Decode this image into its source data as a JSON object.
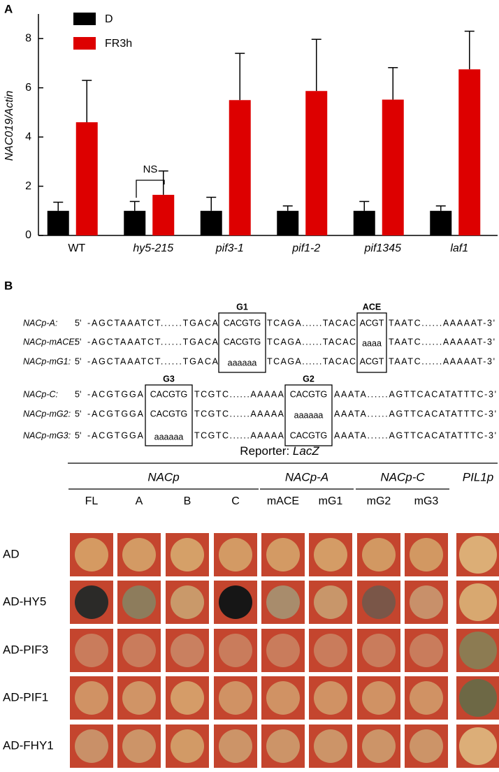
{
  "panel_labels": [
    "A",
    "B"
  ],
  "chart_data": {
    "type": "bar",
    "y_label": "NAC019/Actin",
    "categories": [
      "WT",
      "hy5-215",
      "pif3-1",
      "pif1-2",
      "pif1345",
      "laf1"
    ],
    "category_style": [
      "normal",
      "italic",
      "italic",
      "italic",
      "italic",
      "italic"
    ],
    "series": [
      {
        "name": "D",
        "color": "#000000",
        "values": [
          1.0,
          1.0,
          1.0,
          1.0,
          1.0,
          1.0
        ],
        "errors": [
          0.35,
          0.38,
          0.55,
          0.2,
          0.38,
          0.2
        ]
      },
      {
        "name": "FR3h",
        "color": "#dd0000",
        "values": [
          4.6,
          1.65,
          5.5,
          5.87,
          5.52,
          6.75
        ],
        "errors": [
          1.7,
          0.97,
          1.9,
          2.1,
          1.3,
          1.55
        ]
      }
    ],
    "annotation": "NS",
    "ylim": [
      0,
      9
    ],
    "yticks": [
      0,
      2,
      4,
      6,
      8
    ]
  },
  "sequences": {
    "groups": [
      {
        "boxes": [
          "G1",
          "ACE"
        ],
        "rows": [
          {
            "label": "NACp-A:",
            "prime": "5'",
            "parts": [
              {
                "text": "-AGCTAAATCT......TGACA",
                "color": "#000000"
              },
              {
                "text": "CACGTG",
                "color": "#dd1111"
              },
              {
                "text": "TCAGA......TACAC",
                "color": "#000000"
              },
              {
                "text": "ACGT",
                "color": "#dd1111"
              },
              {
                "text": "TAATC......AAAAAT-3'",
                "color": "#000000"
              }
            ]
          },
          {
            "label": "NACp-mACE:",
            "prime": "5'",
            "parts": [
              {
                "text": "-AGCTAAATCT......TGACA",
                "color": "#000000"
              },
              {
                "text": "CACGTG",
                "color": "#dd1111"
              },
              {
                "text": "TCAGA......TACAC",
                "color": "#000000"
              },
              {
                "text": "aaaa",
                "color": "#000000"
              },
              {
                "text": "TAATC......AAAAAT-3'",
                "color": "#000000"
              }
            ]
          },
          {
            "label": "NACp-mG1:",
            "prime": "5'",
            "parts": [
              {
                "text": "-AGCTAAATCT......TGACA",
                "color": "#000000"
              },
              {
                "text": "aaaaaa",
                "color": "#000000"
              },
              {
                "text": "TCAGA......TACAC",
                "color": "#000000"
              },
              {
                "text": "ACGT",
                "color": "#dd1111"
              },
              {
                "text": "TAATC......AAAAAT-3'",
                "color": "#000000"
              }
            ]
          }
        ]
      },
      {
        "boxes": [
          "G3",
          "G2"
        ],
        "rows": [
          {
            "label": "NACp-C:",
            "prime": "5'",
            "parts": [
              {
                "text": "-ACGTGGA",
                "color": "#000000"
              },
              {
                "text": "CACGTG",
                "color": "#dd1111"
              },
              {
                "text": "TCGTC......AAAAA",
                "color": "#000000"
              },
              {
                "text": "CACGTG",
                "color": "#dd1111"
              },
              {
                "text": "AAATA......AGTTCACATATTTC-3'",
                "color": "#000000"
              }
            ]
          },
          {
            "label": "NACp-mG2:",
            "prime": "5'",
            "parts": [
              {
                "text": "-ACGTGGA",
                "color": "#000000"
              },
              {
                "text": "CACGTG",
                "color": "#dd1111"
              },
              {
                "text": "TCGTC......AAAAA",
                "color": "#000000"
              },
              {
                "text": "aaaaaa",
                "color": "#000000"
              },
              {
                "text": "AAATA......AGTTCACATATTTC-3'",
                "color": "#000000"
              }
            ]
          },
          {
            "label": "NACp-mG3:",
            "prime": "5'",
            "parts": [
              {
                "text": "-ACGTGGA",
                "color": "#000000"
              },
              {
                "text": "aaaaaa",
                "color": "#000000"
              },
              {
                "text": "TCGTC......AAAAA",
                "color": "#000000"
              },
              {
                "text": "CACGTG",
                "color": "#dd1111"
              },
              {
                "text": "AAATA......AGTTCACATATTTC-3'",
                "color": "#000000"
              }
            ]
          }
        ]
      }
    ]
  },
  "assay": {
    "title": "Reporter:",
    "title_italic": "LacZ",
    "groups": [
      {
        "label": "NACp",
        "columns": [
          "FL",
          "A",
          "B",
          "C"
        ]
      },
      {
        "label": "NACp-A",
        "columns": [
          "mACE",
          "mG1"
        ]
      },
      {
        "label": "NACp-C",
        "columns": [
          "mG2",
          "mG3"
        ]
      },
      {
        "label": "PIL1p",
        "columns": []
      }
    ],
    "rows": [
      "AD",
      "AD-HY5",
      "AD-PIF3",
      "AD-PIF1",
      "AD-FHY1"
    ],
    "plate_color": "#c4452e",
    "spot_colors": [
      [
        "#d59a62",
        "#d39a64",
        "#d5a068",
        "#d39a64",
        "#d39a64",
        "#d49c66",
        "#d29862",
        "#d29862",
        "#dcae76"
      ],
      [
        "#2b2a28",
        "#8d7c5c",
        "#c9996a",
        "#161616",
        "#a88c6c",
        "#c8966a",
        "#7a5648",
        "#c8906a",
        "#d8a870"
      ],
      [
        "#c97c5c",
        "#c97c5c",
        "#c98060",
        "#c97c5c",
        "#c97c5c",
        "#c97c5c",
        "#c97c5c",
        "#c97c5c",
        "#8c7b52"
      ],
      [
        "#d09264",
        "#d09466",
        "#d59c68",
        "#d09264",
        "#d09264",
        "#d09264",
        "#d09264",
        "#d09264",
        "#6d6845"
      ],
      [
        "#c99068",
        "#cc9468",
        "#d29a66",
        "#cc9468",
        "#cc9468",
        "#cc9468",
        "#cc9468",
        "#cc9468",
        "#dcae78"
      ]
    ]
  }
}
